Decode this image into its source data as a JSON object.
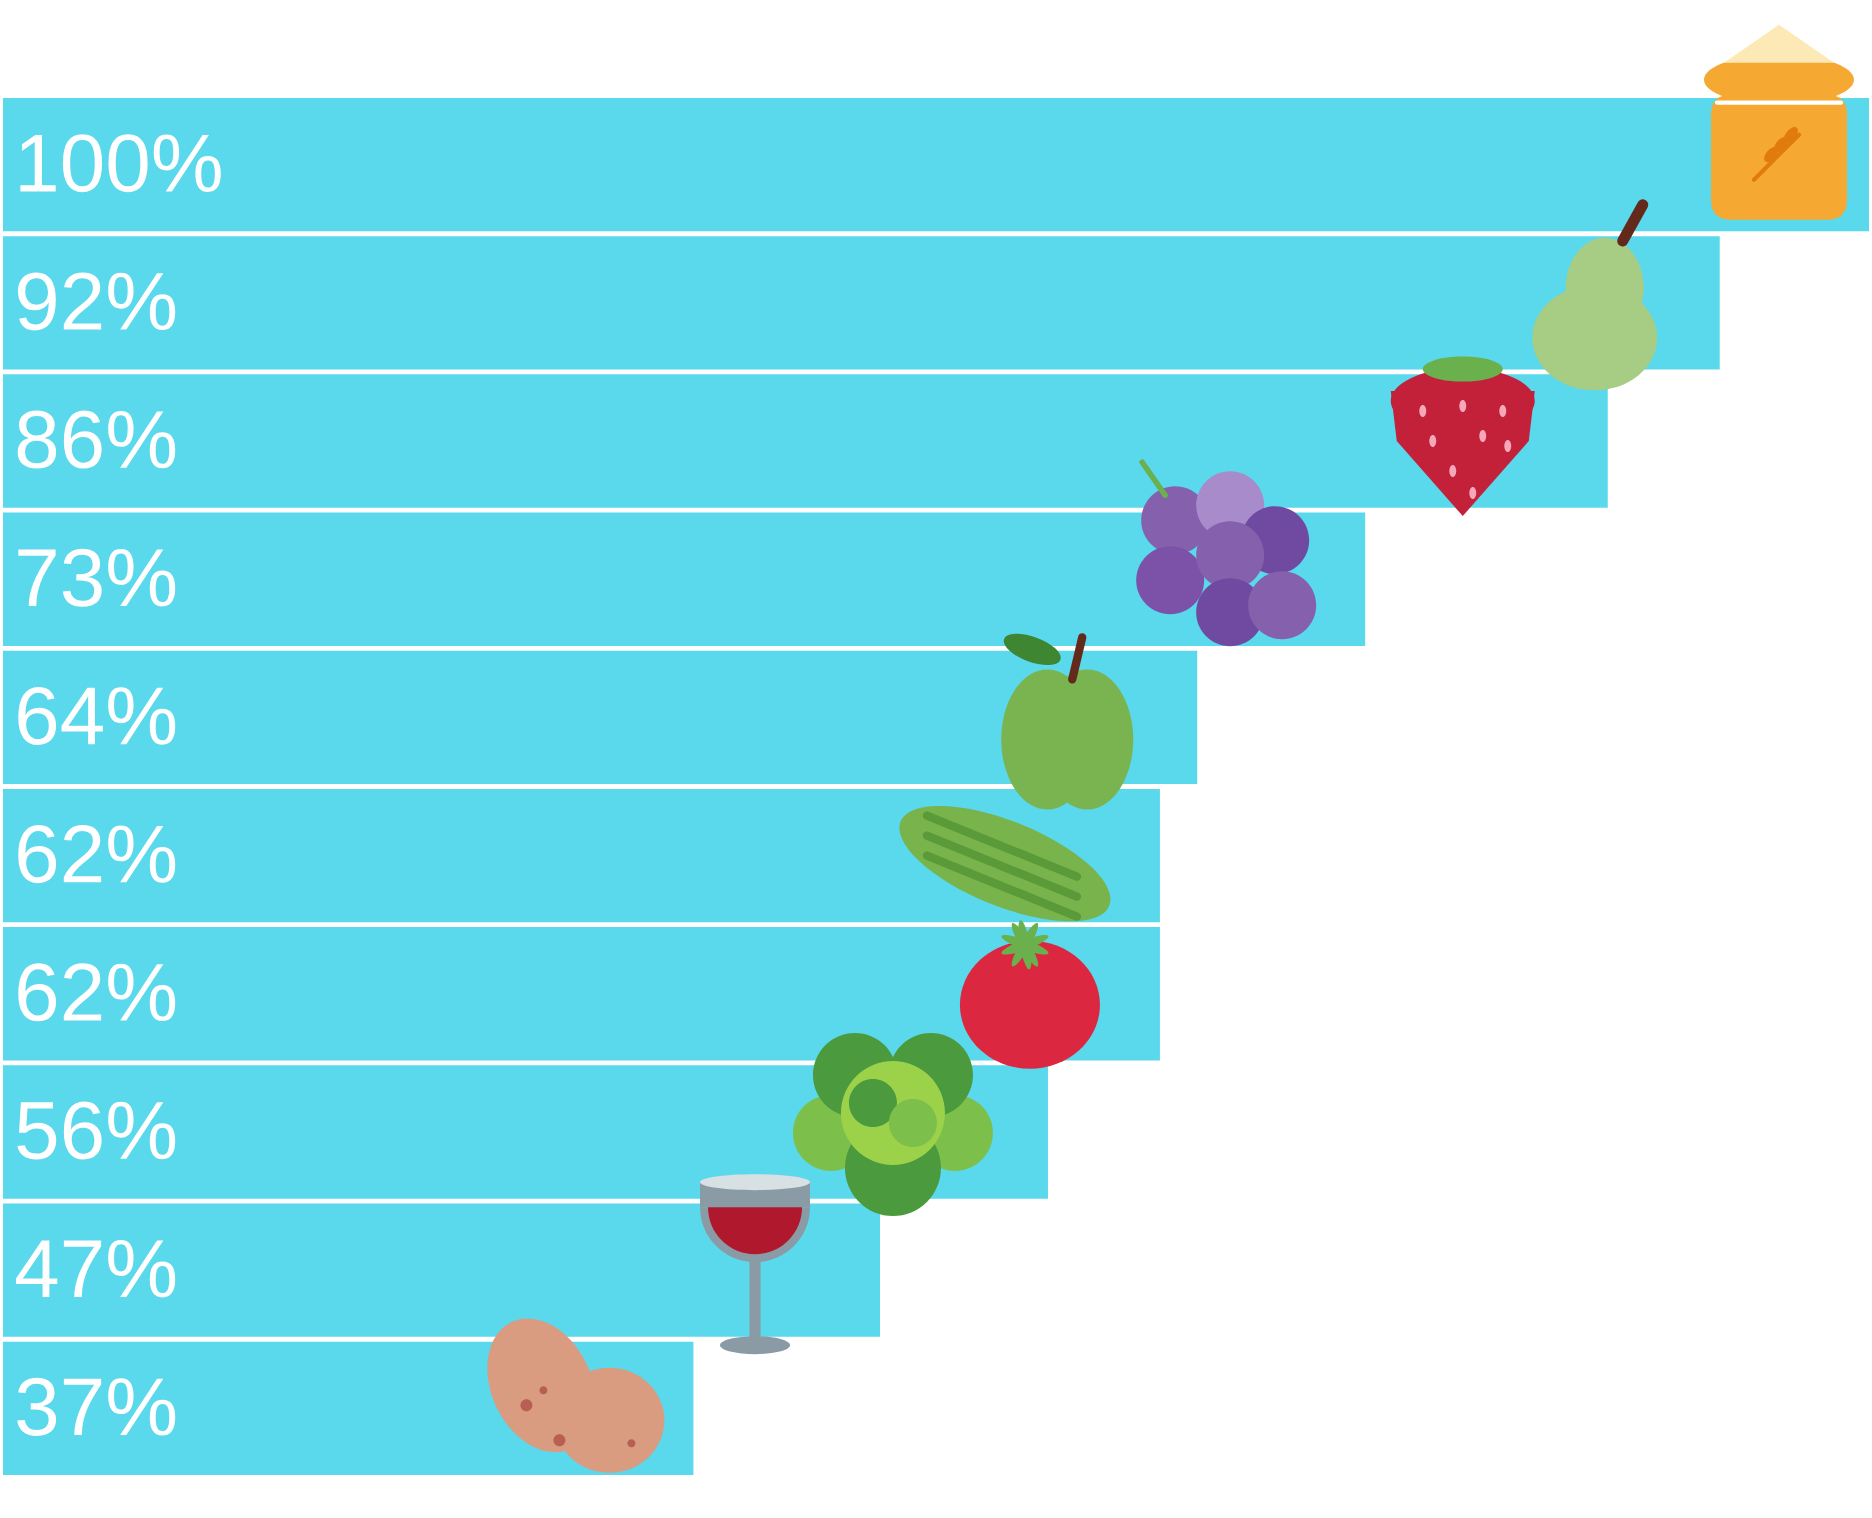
{
  "chart_data": {
    "type": "bar",
    "orientation": "horizontal",
    "categories": [
      null,
      null,
      null,
      null,
      null,
      null,
      null,
      null,
      null,
      null
    ],
    "values": [
      100,
      92,
      86,
      73,
      64,
      62,
      62,
      56,
      47,
      37
    ],
    "value_labels": [
      "100%",
      "92%",
      "86%",
      "73%",
      "64%",
      "62%",
      "62%",
      "56%",
      "47%",
      "37%"
    ],
    "color": "#5ad8ec"
  }
}
